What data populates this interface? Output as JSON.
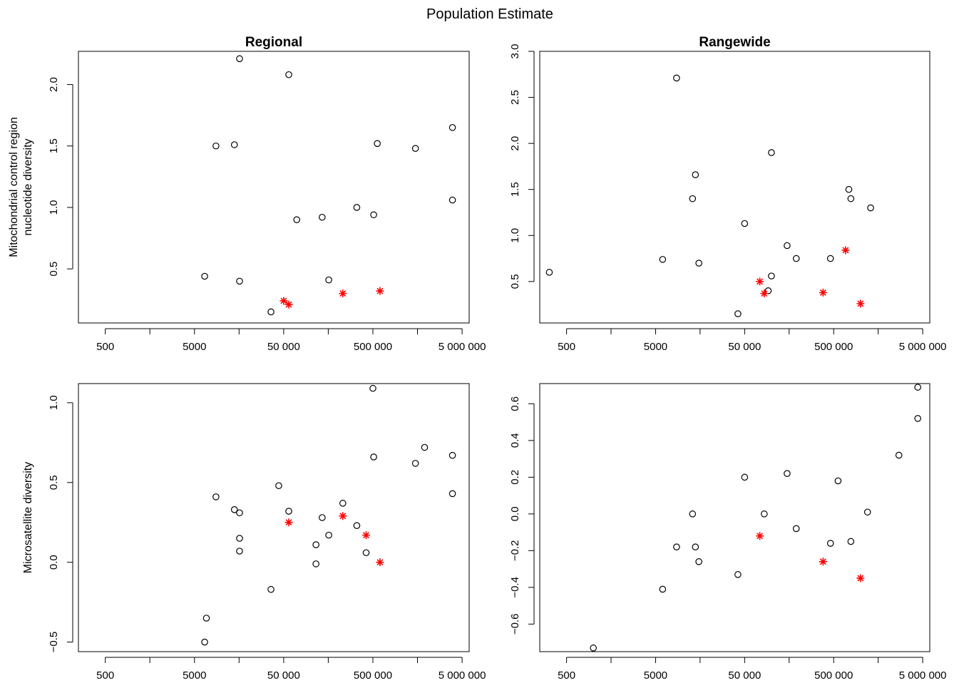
{
  "figure_title": "Population Estimate",
  "colors": {
    "open_point": "#000000",
    "star_point": "#ff0000",
    "axis": "#000000"
  },
  "chart_data": [
    {
      "type": "scatter",
      "title": "Regional",
      "ylabel_lines": [
        "Mitochondrial control region",
        "nucleotide diversity"
      ],
      "xscale": "log",
      "xlim": [
        250,
        6000000
      ],
      "ylim": [
        0.06,
        2.27
      ],
      "xticks": [
        500,
        1580,
        5000,
        15800,
        50000,
        158000,
        500000,
        1580000,
        5000000
      ],
      "xtick_labels": [
        "500",
        "",
        "5000",
        "",
        "50 000",
        "",
        "500 000",
        "",
        "5 000 000"
      ],
      "yticks": [
        0.5,
        1.0,
        1.5,
        2.0
      ],
      "ytick_labels": [
        "0.5",
        "1.0",
        "1.5",
        "2.0"
      ],
      "grid": false,
      "legend": "none",
      "series": [
        {
          "marker": "open-circle",
          "points": [
            [
              6500,
              0.44
            ],
            [
              8700,
              1.5
            ],
            [
              14000,
              1.51
            ],
            [
              16000,
              2.21
            ],
            [
              16000,
              0.4
            ],
            [
              36000,
              0.15
            ],
            [
              57000,
              2.08
            ],
            [
              70000,
              0.9
            ],
            [
              135000,
              0.92
            ],
            [
              160000,
              0.41
            ],
            [
              330000,
              1.0
            ],
            [
              560000,
              1.52
            ],
            [
              510000,
              0.94
            ],
            [
              1500000,
              1.48
            ],
            [
              3900000,
              1.65
            ],
            [
              3900000,
              1.06
            ]
          ]
        },
        {
          "marker": "red-star",
          "points": [
            [
              50000,
              0.24
            ],
            [
              57000,
              0.21
            ],
            [
              230000,
              0.3
            ],
            [
              600000,
              0.32
            ]
          ]
        }
      ]
    },
    {
      "type": "scatter",
      "title": "Rangewide",
      "xscale": "log",
      "xlim": [
        250,
        6000000
      ],
      "ylim": [
        0.05,
        3.0
      ],
      "xticks": [
        500,
        1580,
        5000,
        15800,
        50000,
        158000,
        500000,
        1580000,
        5000000
      ],
      "xtick_labels": [
        "500",
        "",
        "5000",
        "",
        "50 000",
        "",
        "500 000",
        "",
        "5 000 000"
      ],
      "yticks": [
        0.5,
        1.0,
        1.5,
        2.0,
        2.5,
        3.0
      ],
      "ytick_labels": [
        "0.5",
        "1.0",
        "1.5",
        "2.0",
        "2.5",
        "3.0"
      ],
      "grid": false,
      "legend": "none",
      "series": [
        {
          "marker": "open-circle",
          "points": [
            [
              320,
              0.6
            ],
            [
              6000,
              0.74
            ],
            [
              8600,
              2.71
            ],
            [
              13000,
              1.4
            ],
            [
              14000,
              1.66
            ],
            [
              15300,
              0.7
            ],
            [
              42000,
              0.15
            ],
            [
              50000,
              1.13
            ],
            [
              92000,
              0.4
            ],
            [
              100000,
              0.56
            ],
            [
              100000,
              1.9
            ],
            [
              150000,
              0.89
            ],
            [
              190000,
              0.75
            ],
            [
              460000,
              0.75
            ],
            [
              740000,
              1.5
            ],
            [
              780000,
              1.4
            ],
            [
              1300000,
              1.3
            ]
          ]
        },
        {
          "marker": "red-star",
          "points": [
            [
              74000,
              0.5
            ],
            [
              83000,
              0.37
            ],
            [
              380000,
              0.38
            ],
            [
              680000,
              0.84
            ],
            [
              1000000,
              0.26
            ]
          ]
        }
      ]
    },
    {
      "type": "scatter",
      "ylabel_lines": [
        "Microsatellite diversity"
      ],
      "xscale": "log",
      "xlim": [
        250,
        6000000
      ],
      "ylim": [
        -0.56,
        1.12
      ],
      "xticks": [
        500,
        1580,
        5000,
        15800,
        50000,
        158000,
        500000,
        1580000,
        5000000
      ],
      "xtick_labels": [
        "500",
        "",
        "5000",
        "",
        "50 000",
        "",
        "500 000",
        "",
        "5 000 000"
      ],
      "yticks": [
        -0.5,
        0.0,
        0.5,
        1.0
      ],
      "ytick_labels": [
        "−0.5",
        "0.0",
        "0.5",
        "1.0"
      ],
      "grid": false,
      "legend": "none",
      "series": [
        {
          "marker": "open-circle",
          "points": [
            [
              6500,
              -0.5
            ],
            [
              6800,
              -0.35
            ],
            [
              8700,
              0.41
            ],
            [
              14000,
              0.33
            ],
            [
              16000,
              0.31
            ],
            [
              16000,
              0.15
            ],
            [
              16000,
              0.07
            ],
            [
              36000,
              -0.17
            ],
            [
              44000,
              0.48
            ],
            [
              57000,
              0.32
            ],
            [
              115000,
              0.11
            ],
            [
              115000,
              -0.01
            ],
            [
              135000,
              0.28
            ],
            [
              160000,
              0.17
            ],
            [
              230000,
              0.37
            ],
            [
              330000,
              0.23
            ],
            [
              420000,
              0.06
            ],
            [
              500000,
              1.09
            ],
            [
              510000,
              0.66
            ],
            [
              1500000,
              0.62
            ],
            [
              1900000,
              0.72
            ],
            [
              3900000,
              0.67
            ],
            [
              3900000,
              0.43
            ]
          ]
        },
        {
          "marker": "red-star",
          "points": [
            [
              57000,
              0.25
            ],
            [
              230000,
              0.29
            ],
            [
              420000,
              0.17
            ],
            [
              600000,
              0.0
            ]
          ]
        }
      ]
    },
    {
      "type": "scatter",
      "xscale": "log",
      "xlim": [
        250,
        6000000
      ],
      "ylim": [
        -0.75,
        0.71
      ],
      "xticks": [
        500,
        1580,
        5000,
        15800,
        50000,
        158000,
        500000,
        1580000,
        5000000
      ],
      "xtick_labels": [
        "500",
        "",
        "5000",
        "",
        "50 000",
        "",
        "500 000",
        "",
        "5 000 000"
      ],
      "yticks": [
        -0.6,
        -0.4,
        -0.2,
        0.0,
        0.2,
        0.4,
        0.6
      ],
      "ytick_labels": [
        "−0.6",
        "−0.4",
        "−0.2",
        "0.0",
        "0.2",
        "0.4",
        "0.6"
      ],
      "grid": false,
      "legend": "none",
      "series": [
        {
          "marker": "open-circle",
          "points": [
            [
              1000,
              -0.73
            ],
            [
              6000,
              -0.41
            ],
            [
              8600,
              -0.18
            ],
            [
              13000,
              0.0
            ],
            [
              14000,
              -0.18
            ],
            [
              15300,
              -0.26
            ],
            [
              42000,
              -0.33
            ],
            [
              50000,
              0.2
            ],
            [
              83000,
              0.0
            ],
            [
              150000,
              0.22
            ],
            [
              190000,
              -0.08
            ],
            [
              460000,
              -0.16
            ],
            [
              560000,
              0.18
            ],
            [
              780000,
              -0.15
            ],
            [
              1200000,
              0.01
            ],
            [
              2700000,
              0.32
            ],
            [
              4400000,
              0.69
            ],
            [
              4400000,
              0.52
            ]
          ]
        },
        {
          "marker": "red-star",
          "points": [
            [
              74000,
              -0.12
            ],
            [
              380000,
              -0.26
            ],
            [
              1000000,
              -0.35
            ]
          ]
        }
      ]
    }
  ]
}
